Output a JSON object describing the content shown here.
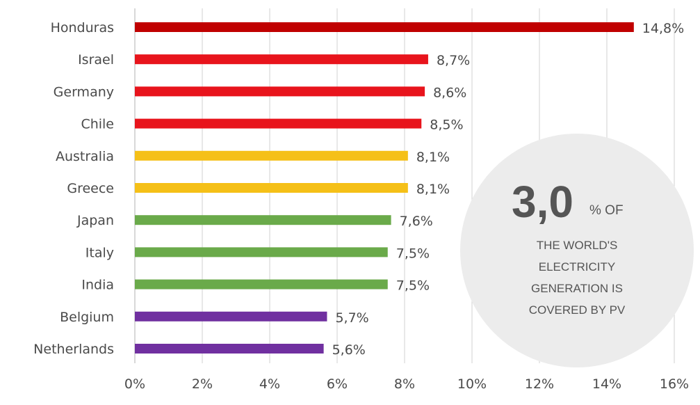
{
  "chart_data": {
    "type": "bar",
    "orientation": "horizontal",
    "categories": [
      "Honduras",
      "Israel",
      "Germany",
      "Chile",
      "Australia",
      "Greece",
      "Japan",
      "Italy",
      "India",
      "Belgium",
      "Netherlands"
    ],
    "values": [
      14.8,
      8.7,
      8.6,
      8.5,
      8.1,
      8.1,
      7.6,
      7.5,
      7.5,
      5.7,
      5.6
    ],
    "value_labels": [
      "14,8%",
      "8,7%",
      "8,6%",
      "8,5%",
      "8,1%",
      "8,1%",
      "7,6%",
      "7,5%",
      "7,5%",
      "5,7%",
      "5,6%"
    ],
    "bar_colors": [
      "#c00000",
      "#e8141c",
      "#e8141c",
      "#e8141c",
      "#f5c018",
      "#f5c018",
      "#6aaa4a",
      "#6aaa4a",
      "#6aaa4a",
      "#7030a0",
      "#7030a0"
    ],
    "xlim": [
      0,
      16
    ],
    "x_ticks": [
      0,
      2,
      4,
      6,
      8,
      10,
      12,
      14,
      16
    ],
    "x_tick_labels": [
      "0%",
      "2%",
      "4%",
      "6%",
      "8%",
      "10%",
      "12%",
      "14%",
      "16%"
    ],
    "grid": "vertical",
    "title": "",
    "xlabel": "",
    "ylabel": ""
  },
  "callout": {
    "big_value": "3,0",
    "unit": "% OF",
    "lines": [
      "THE WORLD'S",
      "ELECTRICITY",
      "GENERATION IS",
      "COVERED BY PV"
    ],
    "circle_color": "#ececec"
  }
}
